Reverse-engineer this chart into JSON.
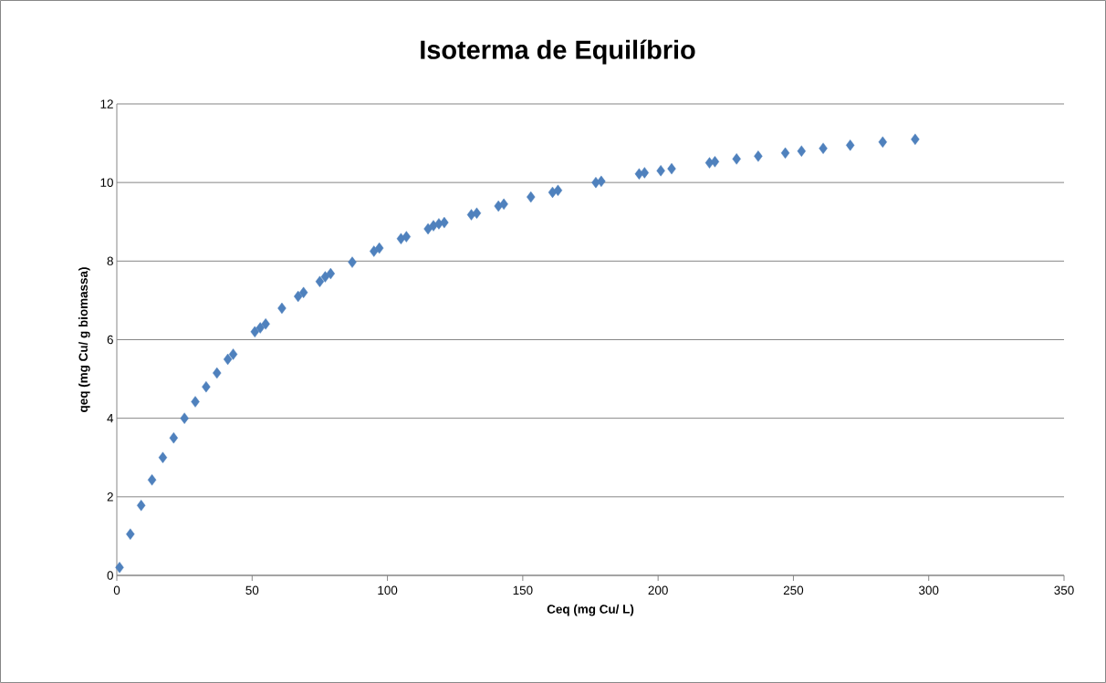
{
  "chart_data": {
    "type": "scatter",
    "title": "Isoterma de Equilíbrio",
    "xlabel": "Ceq (mg Cu/ L)",
    "ylabel": "qeq (mg Cu/ g biomassa)",
    "x": [
      1,
      5,
      9,
      13,
      17,
      21,
      25,
      29,
      33,
      37,
      41,
      43,
      51,
      53,
      55,
      61,
      67,
      69,
      75,
      77,
      79,
      87,
      95,
      97,
      105,
      107,
      115,
      117,
      119,
      121,
      131,
      133,
      141,
      143,
      153,
      161,
      163,
      177,
      179,
      193,
      195,
      201,
      205,
      219,
      221,
      229,
      237,
      247,
      253,
      261,
      271,
      283,
      295
    ],
    "series": [
      {
        "color": "#4f81bd",
        "values": [
          0.2,
          1.05,
          1.78,
          2.43,
          3.0,
          3.5,
          4.0,
          4.42,
          4.8,
          5.15,
          5.5,
          5.63,
          6.2,
          6.3,
          6.4,
          6.8,
          7.1,
          7.2,
          7.48,
          7.6,
          7.68,
          7.97,
          8.25,
          8.33,
          8.57,
          8.62,
          8.82,
          8.9,
          8.95,
          8.98,
          9.18,
          9.22,
          9.4,
          9.45,
          9.63,
          9.75,
          9.8,
          10.0,
          10.03,
          10.22,
          10.25,
          10.3,
          10.35,
          10.5,
          10.53,
          10.6,
          10.67,
          10.75,
          10.8,
          10.87,
          10.95,
          11.03,
          11.1
        ]
      }
    ],
    "xlim": [
      0,
      350
    ],
    "xticks": [
      0,
      50,
      100,
      150,
      200,
      250,
      300,
      350
    ],
    "ylim": [
      0,
      12
    ],
    "yticks": [
      0,
      2,
      4,
      6,
      8,
      10,
      12
    ],
    "grid": "y",
    "marker": "diamond"
  }
}
